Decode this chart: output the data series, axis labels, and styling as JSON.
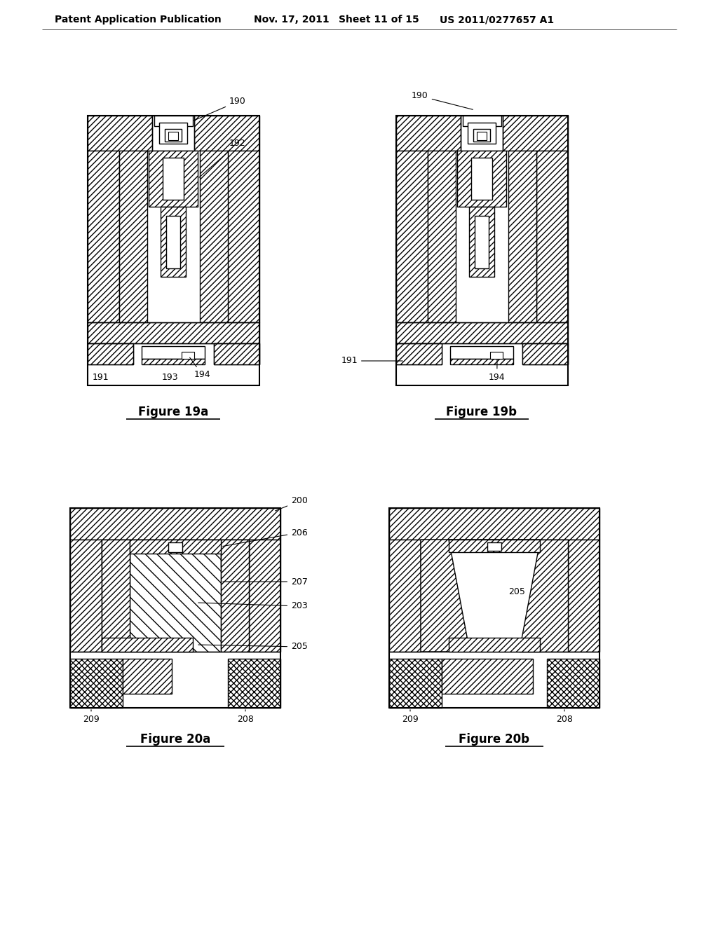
{
  "background_color": "#ffffff",
  "header_text": "Patent Application Publication",
  "header_date": "Nov. 17, 2011",
  "header_sheet": "Sheet 11 of 15",
  "header_patent": "US 2011/0277657 A1",
  "fig19a_title": "Figure 19a",
  "fig19b_title": "Figure 19b",
  "fig20a_title": "Figure 20a",
  "fig20b_title": "Figure 20b",
  "fig_title_fontsize": 12,
  "header_fontsize": 10,
  "label_fontsize": 9
}
